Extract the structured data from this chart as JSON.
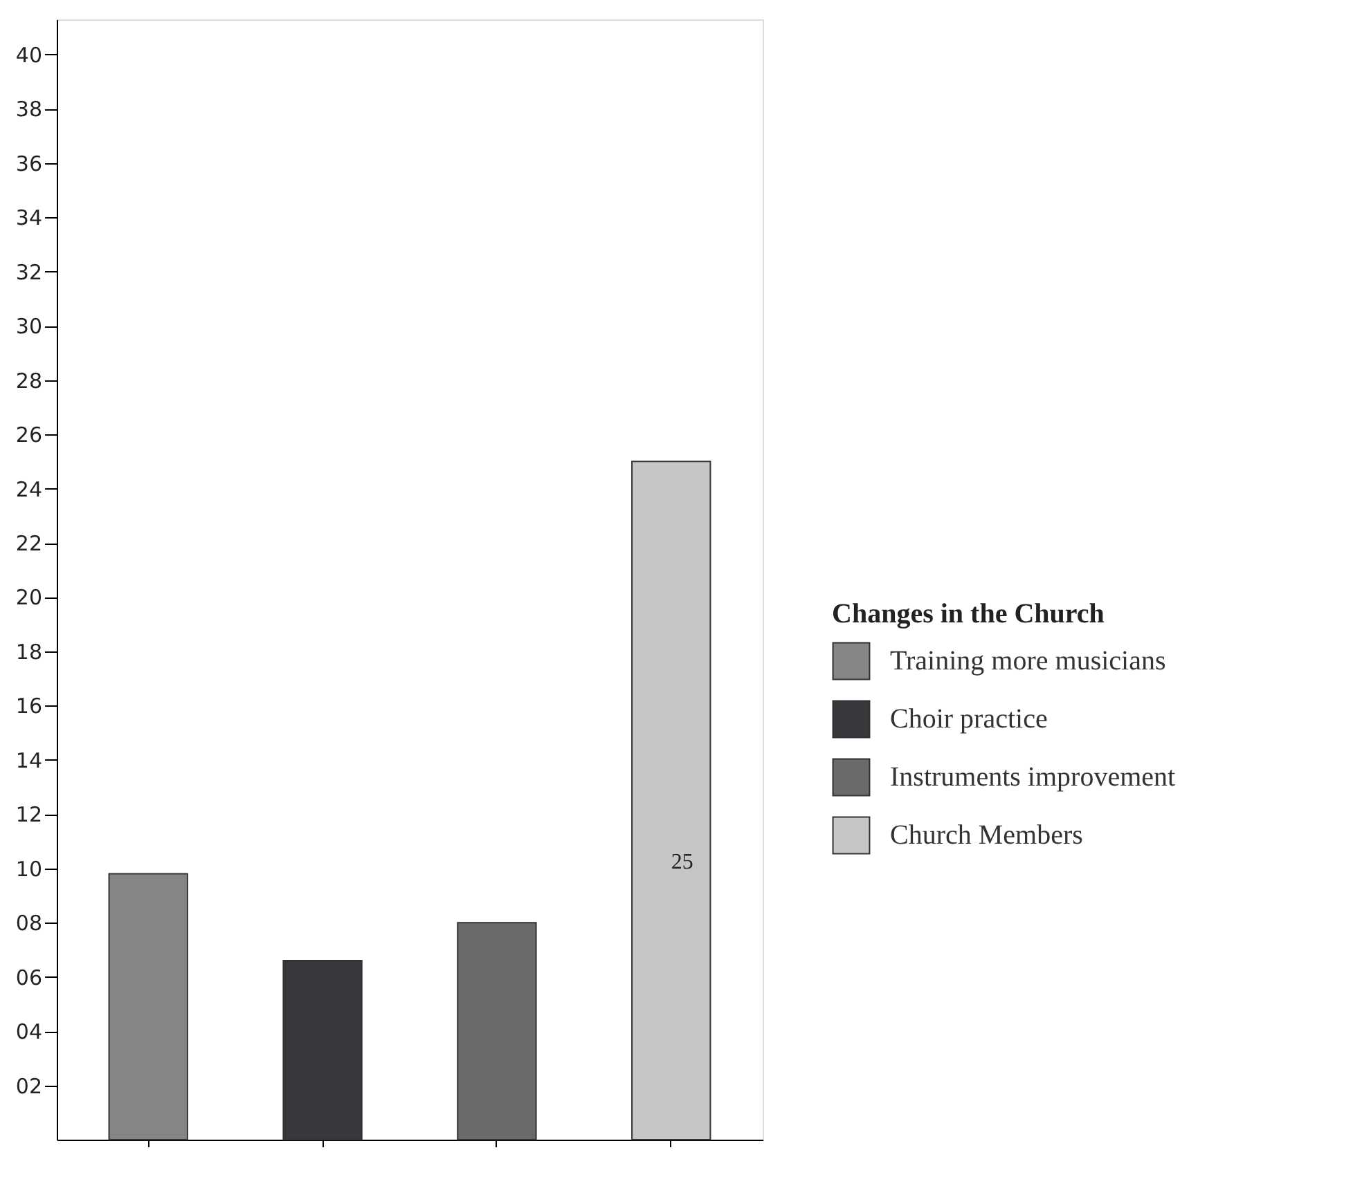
{
  "chart_data": {
    "type": "bar",
    "legend_title": "Changes in the Church",
    "categories": [
      null,
      null,
      null,
      null
    ],
    "series": [
      {
        "name": "Training more musicians",
        "color": "#858585",
        "values": [
          9.8,
          null,
          null,
          null
        ]
      },
      {
        "name": "Choir practice",
        "color": "#38383c",
        "values": [
          null,
          6.6,
          null,
          null
        ]
      },
      {
        "name": "Instruments improvement",
        "color": "#6a6a6a",
        "values": [
          null,
          null,
          8.0,
          null
        ]
      },
      {
        "name": "Church Members",
        "color": "#c6c6c6",
        "values": [
          null,
          null,
          null,
          25
        ],
        "value_labels": [
          null,
          null,
          null,
          "25"
        ]
      }
    ],
    "ylim": [
      0,
      41.3
    ],
    "yticks": [
      {
        "value": 2,
        "label": "02"
      },
      {
        "value": 4,
        "label": "04"
      },
      {
        "value": 6,
        "label": "06"
      },
      {
        "value": 8,
        "label": "08"
      },
      10,
      12,
      14,
      16,
      18,
      20,
      22,
      24,
      26,
      28,
      30,
      32,
      34,
      36,
      38,
      40
    ],
    "tick_labels": "y",
    "legend": "right",
    "grid": false
  }
}
